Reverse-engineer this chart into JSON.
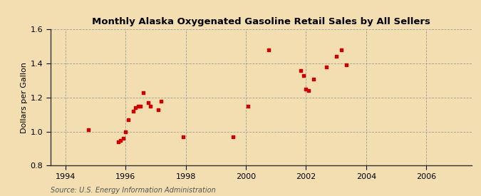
{
  "title": "Monthly Alaska Oxygenated Gasoline Retail Sales by All Sellers",
  "ylabel": "Dollars per Gallon",
  "source": "Source: U.S. Energy Information Administration",
  "background_color": "#f2deb0",
  "plot_bg_color": "#f2deb0",
  "marker_color": "#cc0000",
  "xlim": [
    1993.5,
    2007.5
  ],
  "ylim": [
    0.8,
    1.6
  ],
  "xticks": [
    1994,
    1996,
    1998,
    2000,
    2002,
    2004,
    2006
  ],
  "yticks": [
    0.8,
    1.0,
    1.2,
    1.4,
    1.6
  ],
  "data_points": [
    [
      1994.75,
      1.01
    ],
    [
      1995.75,
      0.94
    ],
    [
      1995.83,
      0.95
    ],
    [
      1995.92,
      0.96
    ],
    [
      1996.0,
      1.0
    ],
    [
      1996.08,
      1.07
    ],
    [
      1996.25,
      1.12
    ],
    [
      1996.33,
      1.14
    ],
    [
      1996.42,
      1.15
    ],
    [
      1996.5,
      1.15
    ],
    [
      1996.58,
      1.23
    ],
    [
      1996.75,
      1.17
    ],
    [
      1996.83,
      1.15
    ],
    [
      1997.08,
      1.13
    ],
    [
      1997.17,
      1.18
    ],
    [
      1997.92,
      0.97
    ],
    [
      1999.58,
      0.97
    ],
    [
      2000.08,
      1.15
    ],
    [
      2000.75,
      1.48
    ],
    [
      2001.83,
      1.36
    ],
    [
      2001.92,
      1.33
    ],
    [
      2002.0,
      1.25
    ],
    [
      2002.08,
      1.24
    ],
    [
      2002.25,
      1.31
    ],
    [
      2002.67,
      1.38
    ],
    [
      2003.0,
      1.44
    ],
    [
      2003.17,
      1.48
    ],
    [
      2003.33,
      1.39
    ]
  ]
}
